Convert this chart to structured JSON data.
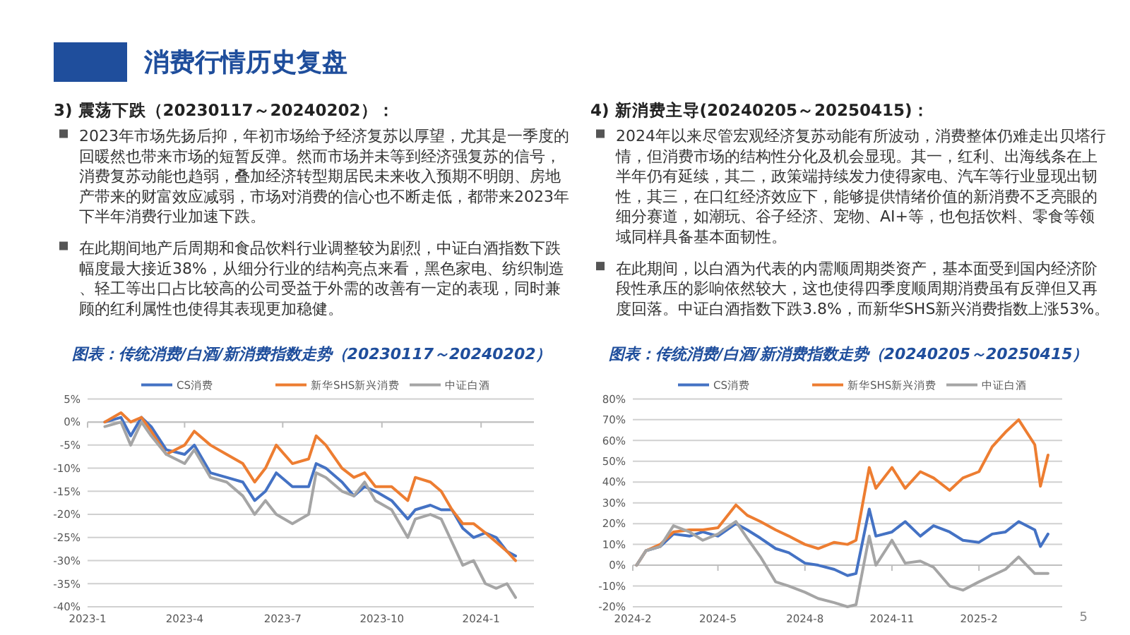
{
  "chart_data": [
    {
      "type": "line",
      "title": "图表：传统消费/白酒/新消费指数走势（20230117～20240202）",
      "annotations": [
        "消费行情历史复盘",
        "3) 震荡下跌（20230117～20240202）：",
        "2023年市场先扬后抑，年初市场给予经济复苏以厚望，尤其是一季度的回暖然也带来市场的短暂反弹。然而市场并未等到经济强复苏的信号，消费复苏动能也趋弱，叠加经济转型期居民未来收入预期不明朗、房地产带来的财富效应减弱，市场对消费的信心也不断走低，都带来2023年下半年消费行业加速下跌。",
        "在此期间地产后周期和食品饮料行业调整较为剧烈，中证白酒指数下跌幅度最大接近38%，从细分行业的结构亮点来看，黑色家电、纺织制造、轻工等出口占比较高的公司受益于外需的改善有一定的表现，同时兼顾的红利属性也使得其表现更加稳健。"
      ],
      "x": [
        "2023-01-17",
        "2023-02-01",
        "2023-02-10",
        "2023-02-20",
        "2023-03-01",
        "2023-03-15",
        "2023-04-01",
        "2023-04-10",
        "2023-04-25",
        "2023-05-10",
        "2023-05-25",
        "2023-06-05",
        "2023-06-15",
        "2023-06-25",
        "2023-07-10",
        "2023-07-25",
        "2023-08-01",
        "2023-08-10",
        "2023-08-25",
        "2023-09-05",
        "2023-09-15",
        "2023-09-25",
        "2023-10-10",
        "2023-10-25",
        "2023-11-01",
        "2023-11-15",
        "2023-11-25",
        "2023-12-05",
        "2023-12-15",
        "2023-12-25",
        "2024-01-05",
        "2024-01-15",
        "2024-01-25",
        "2024-02-02"
      ],
      "series": [
        {
          "name": "CS消费",
          "color": "#4472c4",
          "values": [
            0,
            1,
            -3,
            1,
            -1,
            -6,
            -7,
            -5,
            -11,
            -12,
            -13,
            -17,
            -15,
            -11,
            -14,
            -14,
            -9,
            -10,
            -13,
            -16,
            -14,
            -15,
            -17,
            -21,
            -19,
            -18,
            -19,
            -19,
            -23,
            -25,
            -24,
            -25,
            -28,
            -29
          ]
        },
        {
          "name": "新华SHS新兴消费",
          "color": "#ed7d31",
          "values": [
            0,
            2,
            0,
            1,
            -2,
            -7,
            -5,
            -2,
            -5,
            -7,
            -9,
            -13,
            -10,
            -5,
            -9,
            -8,
            -3,
            -5,
            -10,
            -12,
            -11,
            -14,
            -14,
            -17,
            -12,
            -13,
            -15,
            -19,
            -22,
            -22,
            -24,
            -26,
            -28,
            -30
          ]
        },
        {
          "name": "中证白酒",
          "color": "#a5a5a5",
          "values": [
            -1,
            0,
            -5,
            0,
            -3,
            -7,
            -9,
            -6,
            -12,
            -13,
            -16,
            -20,
            -17,
            -20,
            -22,
            -20,
            -11,
            -12,
            -15,
            -16,
            -13,
            -17,
            -19,
            -25,
            -21,
            -20,
            -21,
            -26,
            -31,
            -30,
            -35,
            -36,
            -35,
            -38
          ]
        }
      ],
      "xlim": [
        "2023-01-01",
        "2024-02-19"
      ],
      "xticks": [
        {
          "value": "2023-01-01",
          "label": "2023-1"
        },
        {
          "value": "2023-04-01",
          "label": "2023-4"
        },
        {
          "value": "2023-07-01",
          "label": "2023-7"
        },
        {
          "value": "2023-10-01",
          "label": "2023-10"
        },
        {
          "value": "2024-01-01",
          "label": "2024-1"
        }
      ],
      "ylim": [
        -40,
        5
      ],
      "yticks": [
        {
          "value": 5,
          "label": "5%"
        },
        {
          "value": 0,
          "label": "0%"
        },
        {
          "value": -5,
          "label": "-5%"
        },
        {
          "value": -10,
          "label": "-10%"
        },
        {
          "value": -15,
          "label": "-15%"
        },
        {
          "value": -20,
          "label": "-20%"
        },
        {
          "value": -25,
          "label": "-25%"
        },
        {
          "value": -30,
          "label": "-30%"
        },
        {
          "value": -35,
          "label": "-35%"
        },
        {
          "value": -40,
          "label": "-40%"
        }
      ],
      "grid": "y",
      "legend": "top",
      "marker": "none",
      "line_style": "solid"
    },
    {
      "type": "line",
      "title": "图表：传统消费/白酒/新消费指数走势（20240205～20250415）",
      "annotations": [
        "4) 新消费主导(20240205～20250415)：",
        "2024年以来尽管宏观经济复苏动能有所波动，消费整体仍难走出贝塔行情，但消费市场的结构性分化及机会显现。其一，红利、出海线条在上半年仍有延续，其二，政策端持续发力使得家电、汽车等行业显现出韧性，其三，在口红经济效应下，能够提供情绪价值的新消费不乏亮眼的细分赛道，如潮玩、谷子经济、宠物、AI+等，也包括饮料、零食等领域同样具备基本面韧性。",
        "在此期间，以白酒为代表的内需顺周期类资产，基本面受到国内经济阶段性承压的影响依然较大，这也使得四季度顺周期消费虽有反弹但又再度回落。中证白酒指数下跌3.8%，而新华SHS新兴消费指数上涨53%。",
        "5"
      ],
      "x": [
        "2024-02-05",
        "2024-02-15",
        "2024-03-01",
        "2024-03-15",
        "2024-04-01",
        "2024-04-15",
        "2024-05-01",
        "2024-05-20",
        "2024-06-01",
        "2024-06-15",
        "2024-07-01",
        "2024-07-15",
        "2024-08-01",
        "2024-08-15",
        "2024-09-01",
        "2024-09-15",
        "2024-09-24",
        "2024-10-08",
        "2024-10-15",
        "2024-11-01",
        "2024-11-15",
        "2024-12-01",
        "2024-12-15",
        "2025-01-01",
        "2025-01-15",
        "2025-02-01",
        "2025-02-15",
        "2025-03-01",
        "2025-03-15",
        "2025-04-01",
        "2025-04-07",
        "2025-04-15"
      ],
      "series": [
        {
          "name": "CS消费",
          "color": "#4472c4",
          "values": [
            0,
            7,
            9,
            15,
            14,
            16,
            14,
            20,
            17,
            13,
            8,
            6,
            1,
            0,
            -2,
            -5,
            -4,
            27,
            14,
            16,
            21,
            14,
            19,
            16,
            12,
            11,
            15,
            16,
            21,
            17,
            9,
            15
          ]
        },
        {
          "name": "新华SHS新兴消费",
          "color": "#ed7d31",
          "values": [
            0,
            7,
            10,
            16,
            17,
            17,
            18,
            29,
            24,
            21,
            17,
            14,
            10,
            8,
            11,
            10,
            12,
            47,
            37,
            47,
            37,
            45,
            42,
            36,
            42,
            45,
            57,
            64,
            70,
            58,
            38,
            53
          ]
        },
        {
          "name": "中证白酒",
          "color": "#a5a5a5",
          "values": [
            0,
            7,
            9,
            19,
            16,
            12,
            15,
            21,
            13,
            4,
            -8,
            -10,
            -13,
            -16,
            -18,
            -20,
            -19,
            14,
            0,
            12,
            1,
            2,
            -1,
            -10,
            -12,
            -8,
            -5,
            -2,
            4,
            -4,
            -4,
            -4
          ]
        }
      ],
      "xlim": [
        "2024-02-01",
        "2025-04-30"
      ],
      "xticks": [
        {
          "value": "2024-02-01",
          "label": "2024-2"
        },
        {
          "value": "2024-05-01",
          "label": "2024-5"
        },
        {
          "value": "2024-08-01",
          "label": "2024-8"
        },
        {
          "value": "2024-11-01",
          "label": "2024-11"
        },
        {
          "value": "2025-02-01",
          "label": "2025-2"
        }
      ],
      "ylim": [
        -20,
        80
      ],
      "yticks": [
        {
          "value": 80,
          "label": "80%"
        },
        {
          "value": 70,
          "label": "70%"
        },
        {
          "value": 60,
          "label": "60%"
        },
        {
          "value": 50,
          "label": "50%"
        },
        {
          "value": 40,
          "label": "40%"
        },
        {
          "value": 30,
          "label": "30%"
        },
        {
          "value": 20,
          "label": "20%"
        },
        {
          "value": 10,
          "label": "10%"
        },
        {
          "value": 0,
          "label": "0%"
        },
        {
          "value": -10,
          "label": "-10%"
        },
        {
          "value": -20,
          "label": "-20%"
        }
      ],
      "grid": "y",
      "legend": "top",
      "marker": "none",
      "line_style": "solid"
    }
  ]
}
